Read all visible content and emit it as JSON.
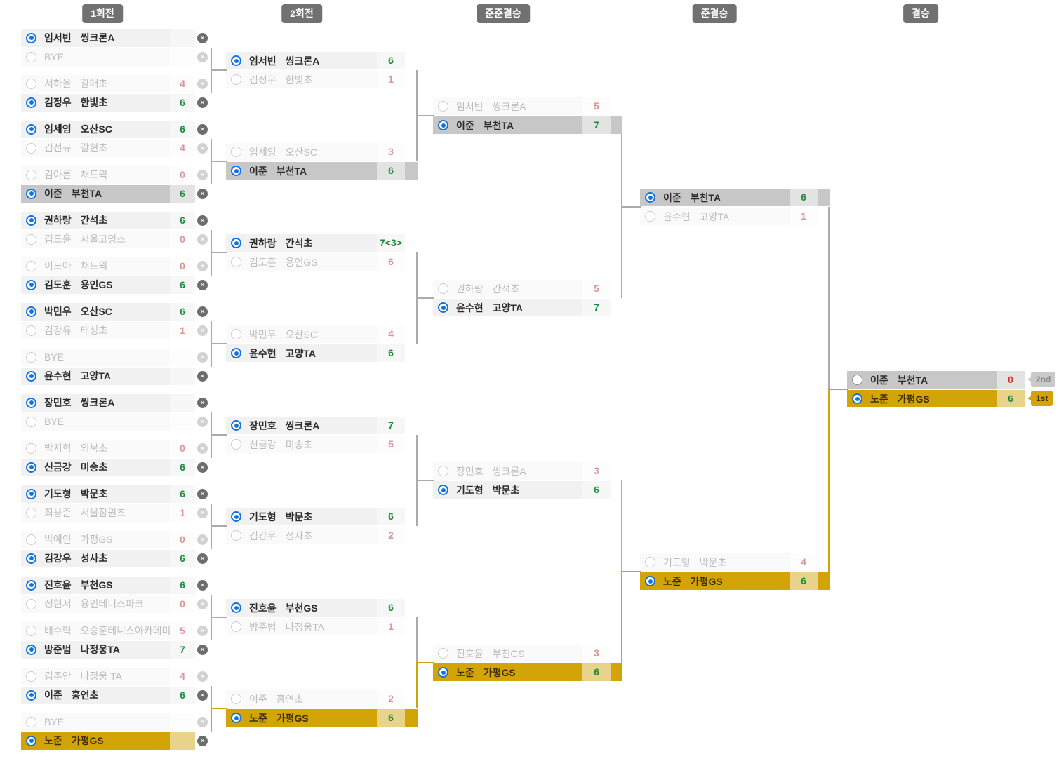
{
  "headers": [
    {
      "label": "1회전"
    },
    {
      "label": "2회전"
    },
    {
      "label": "준준결승"
    },
    {
      "label": "준결승"
    },
    {
      "label": "결승"
    }
  ],
  "colors": {
    "champion_gold": "#d3a408",
    "runnerup_gray": "#c7c7c7",
    "win_score_green": "#1a8a3c",
    "lose_score_red": "#d0342c",
    "radio_blue": "#1273de",
    "connector_gray": "#ababab",
    "header_gray": "#717171"
  },
  "rounds": [
    {
      "label": "1회전",
      "matches": [
        {
          "players": [
            {
              "name": "임서빈",
              "club": "씽크론A",
              "score": "",
              "winner": true,
              "dim": false
            },
            {
              "name": "BYE",
              "club": "",
              "score": "",
              "winner": false,
              "dim": true,
              "bye": true
            }
          ]
        },
        {
          "players": [
            {
              "name": "서하율",
              "club": "갈매초",
              "score": "4",
              "winner": false,
              "dim": true
            },
            {
              "name": "김정우",
              "club": "한빛초",
              "score": "6",
              "winner": true,
              "dim": false
            }
          ]
        },
        {
          "players": [
            {
              "name": "임세영",
              "club": "오산SC",
              "score": "6",
              "winner": true,
              "dim": false
            },
            {
              "name": "김선규",
              "club": "갈현초",
              "score": "4",
              "winner": false,
              "dim": true
            }
          ]
        },
        {
          "players": [
            {
              "name": "김아론",
              "club": "채드윅",
              "score": "0",
              "winner": false,
              "dim": true
            },
            {
              "name": "이준",
              "club": "부천TA",
              "score": "6",
              "winner": true,
              "dim": false,
              "highlight": "gray"
            }
          ]
        },
        {
          "players": [
            {
              "name": "권하랑",
              "club": "간석초",
              "score": "6",
              "winner": true,
              "dim": false
            },
            {
              "name": "김도윤",
              "club": "서울고명초",
              "score": "0",
              "winner": false,
              "dim": true
            }
          ]
        },
        {
          "players": [
            {
              "name": "이노아",
              "club": "채드윅",
              "score": "0",
              "winner": false,
              "dim": true
            },
            {
              "name": "김도훈",
              "club": "용인GS",
              "score": "6",
              "winner": true,
              "dim": false
            }
          ]
        },
        {
          "players": [
            {
              "name": "박민우",
              "club": "오산SC",
              "score": "6",
              "winner": true,
              "dim": false
            },
            {
              "name": "김강유",
              "club": "태성초",
              "score": "1",
              "winner": false,
              "dim": true
            }
          ]
        },
        {
          "players": [
            {
              "name": "BYE",
              "club": "",
              "score": "",
              "winner": false,
              "dim": true,
              "bye": true
            },
            {
              "name": "윤수현",
              "club": "고양TA",
              "score": "",
              "winner": true,
              "dim": false
            }
          ]
        },
        {
          "players": [
            {
              "name": "장민호",
              "club": "씽크론A",
              "score": "",
              "winner": true,
              "dim": false
            },
            {
              "name": "BYE",
              "club": "",
              "score": "",
              "winner": false,
              "dim": true,
              "bye": true
            }
          ]
        },
        {
          "players": [
            {
              "name": "박지혁",
              "club": "외북초",
              "score": "0",
              "winner": false,
              "dim": true
            },
            {
              "name": "신금강",
              "club": "미송초",
              "score": "6",
              "winner": true,
              "dim": false
            }
          ]
        },
        {
          "players": [
            {
              "name": "기도형",
              "club": "박문초",
              "score": "6",
              "winner": true,
              "dim": false
            },
            {
              "name": "최용준",
              "club": "서울잠원초",
              "score": "1",
              "winner": false,
              "dim": true
            }
          ]
        },
        {
          "players": [
            {
              "name": "박예인",
              "club": "가평GS",
              "score": "0",
              "winner": false,
              "dim": true
            },
            {
              "name": "김강우",
              "club": "성사초",
              "score": "6",
              "winner": true,
              "dim": false
            }
          ]
        },
        {
          "players": [
            {
              "name": "진호윤",
              "club": "부천GS",
              "score": "6",
              "winner": true,
              "dim": false
            },
            {
              "name": "정현서",
              "club": "용인테니스파크",
              "score": "0",
              "winner": false,
              "dim": true
            }
          ]
        },
        {
          "players": [
            {
              "name": "배수혁",
              "club": "오승훈테니스아카데미",
              "score": "5",
              "winner": false,
              "dim": true
            },
            {
              "name": "방준범",
              "club": "나정웅TA",
              "score": "7",
              "winner": true,
              "dim": false
            }
          ]
        },
        {
          "players": [
            {
              "name": "김주안",
              "club": "나정웅 TA",
              "score": "4",
              "winner": false,
              "dim": true
            },
            {
              "name": "이준",
              "club": "홍연초",
              "score": "6",
              "winner": true,
              "dim": false
            }
          ]
        },
        {
          "players": [
            {
              "name": "BYE",
              "club": "",
              "score": "",
              "winner": false,
              "dim": true,
              "bye": true
            },
            {
              "name": "노준",
              "club": "가평GS",
              "score": "",
              "winner": true,
              "dim": false,
              "highlight": "gold"
            }
          ]
        }
      ]
    },
    {
      "label": "2회전",
      "matches": [
        {
          "players": [
            {
              "name": "임서빈",
              "club": "씽크론A",
              "score": "6",
              "winner": true,
              "dim": false
            },
            {
              "name": "김정우",
              "club": "한빛초",
              "score": "1",
              "winner": false,
              "dim": true
            }
          ]
        },
        {
          "players": [
            {
              "name": "임세영",
              "club": "오산SC",
              "score": "3",
              "winner": false,
              "dim": true
            },
            {
              "name": "이준",
              "club": "부천TA",
              "score": "6",
              "winner": true,
              "dim": false,
              "highlight": "gray"
            }
          ]
        },
        {
          "players": [
            {
              "name": "권하랑",
              "club": "간석초",
              "score": "7<3>",
              "winner": true,
              "dim": false
            },
            {
              "name": "김도훈",
              "club": "용인GS",
              "score": "6",
              "winner": false,
              "dim": true
            }
          ]
        },
        {
          "players": [
            {
              "name": "박민우",
              "club": "오산SC",
              "score": "4",
              "winner": false,
              "dim": true
            },
            {
              "name": "윤수현",
              "club": "고양TA",
              "score": "6",
              "winner": true,
              "dim": false
            }
          ]
        },
        {
          "players": [
            {
              "name": "장민호",
              "club": "씽크론A",
              "score": "7",
              "winner": true,
              "dim": false
            },
            {
              "name": "신금강",
              "club": "미송초",
              "score": "5",
              "winner": false,
              "dim": true
            }
          ]
        },
        {
          "players": [
            {
              "name": "기도형",
              "club": "박문초",
              "score": "6",
              "winner": true,
              "dim": false
            },
            {
              "name": "김강우",
              "club": "성사초",
              "score": "2",
              "winner": false,
              "dim": true
            }
          ]
        },
        {
          "players": [
            {
              "name": "진호윤",
              "club": "부천GS",
              "score": "6",
              "winner": true,
              "dim": false
            },
            {
              "name": "방준범",
              "club": "나정웅TA",
              "score": "1",
              "winner": false,
              "dim": true
            }
          ]
        },
        {
          "players": [
            {
              "name": "이준",
              "club": "홍연초",
              "score": "2",
              "winner": false,
              "dim": true
            },
            {
              "name": "노준",
              "club": "가평GS",
              "score": "6",
              "winner": true,
              "dim": false,
              "highlight": "gold"
            }
          ]
        }
      ]
    },
    {
      "label": "준준결승",
      "matches": [
        {
          "players": [
            {
              "name": "임서빈",
              "club": "씽크론A",
              "score": "5",
              "winner": false,
              "dim": true
            },
            {
              "name": "이준",
              "club": "부천TA",
              "score": "7",
              "winner": true,
              "dim": false,
              "highlight": "gray"
            }
          ]
        },
        {
          "players": [
            {
              "name": "권하랑",
              "club": "간석초",
              "score": "5",
              "winner": false,
              "dim": true
            },
            {
              "name": "윤수현",
              "club": "고양TA",
              "score": "7",
              "winner": true,
              "dim": false
            }
          ]
        },
        {
          "players": [
            {
              "name": "장민호",
              "club": "씽크론A",
              "score": "3",
              "winner": false,
              "dim": true
            },
            {
              "name": "기도형",
              "club": "박문초",
              "score": "6",
              "winner": true,
              "dim": false
            }
          ]
        },
        {
          "players": [
            {
              "name": "진호윤",
              "club": "부천GS",
              "score": "3",
              "winner": false,
              "dim": true
            },
            {
              "name": "노준",
              "club": "가평GS",
              "score": "6",
              "winner": true,
              "dim": false,
              "highlight": "gold"
            }
          ]
        }
      ]
    },
    {
      "label": "준결승",
      "matches": [
        {
          "players": [
            {
              "name": "이준",
              "club": "부천TA",
              "score": "6",
              "winner": true,
              "dim": false,
              "highlight": "gray"
            },
            {
              "name": "윤수현",
              "club": "고양TA",
              "score": "1",
              "winner": false,
              "dim": true
            }
          ]
        },
        {
          "players": [
            {
              "name": "기도형",
              "club": "박문초",
              "score": "4",
              "winner": false,
              "dim": true
            },
            {
              "name": "노준",
              "club": "가평GS",
              "score": "6",
              "winner": true,
              "dim": false,
              "highlight": "gold"
            }
          ]
        }
      ]
    },
    {
      "label": "결승",
      "matches": [
        {
          "players": [
            {
              "name": "이준",
              "club": "부천TA",
              "score": "0",
              "winner": false,
              "dim": false,
              "highlight": "gray",
              "badge": {
                "label": "2nd",
                "style": "gray"
              }
            },
            {
              "name": "노준",
              "club": "가평GS",
              "score": "6",
              "winner": true,
              "dim": false,
              "highlight": "gold",
              "badge": {
                "label": "1st",
                "style": "gold"
              }
            }
          ]
        }
      ]
    }
  ]
}
